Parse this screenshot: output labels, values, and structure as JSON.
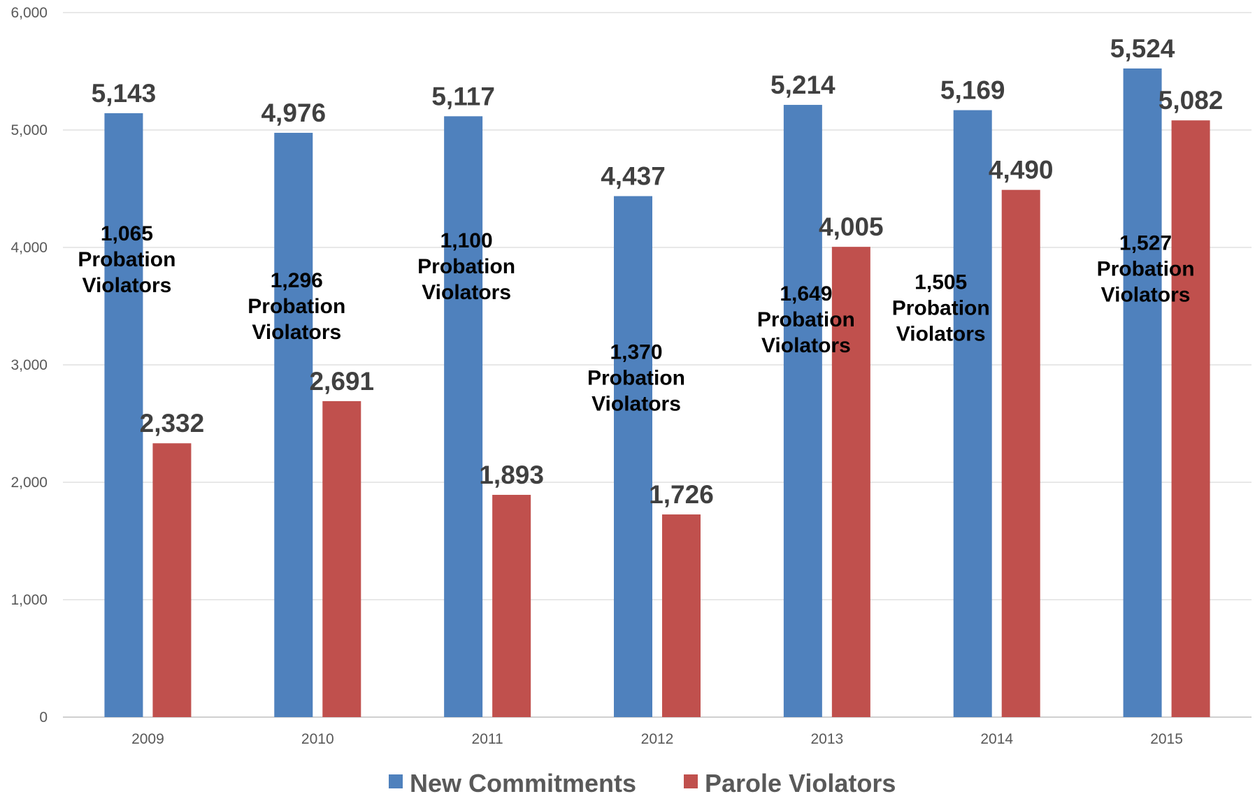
{
  "chart_data": {
    "type": "bar",
    "categories": [
      "2009",
      "2010",
      "2011",
      "2012",
      "2013",
      "2014",
      "2015"
    ],
    "series": [
      {
        "name": "New Commitments",
        "color": "#4f81bd",
        "values": [
          5143,
          4976,
          5117,
          4437,
          5214,
          5169,
          5524
        ],
        "labels": [
          "5,143",
          "4,976",
          "5,117",
          "4,437",
          "5,214",
          "5,169",
          "5,524"
        ]
      },
      {
        "name": "Parole Violators",
        "color": "#c0504d",
        "values": [
          2332,
          2691,
          1893,
          1726,
          4005,
          4490,
          5082
        ],
        "labels": [
          "2,332",
          "2,691",
          "1,893",
          "1,726",
          "4,005",
          "4,490",
          "5,082"
        ]
      }
    ],
    "annotations": [
      {
        "category": "2009",
        "value": 1065,
        "lines": [
          "1,065",
          "Probation",
          "Violators"
        ]
      },
      {
        "category": "2010",
        "value": 1296,
        "lines": [
          "1,296",
          "Probation",
          "Violators"
        ]
      },
      {
        "category": "2011",
        "value": 1100,
        "lines": [
          "1,100",
          "Probation",
          "Violators"
        ]
      },
      {
        "category": "2012",
        "value": 1370,
        "lines": [
          "1,370",
          "Probation",
          "Violators"
        ]
      },
      {
        "category": "2013",
        "value": 1649,
        "lines": [
          "1,649",
          "Probation",
          "Violators"
        ]
      },
      {
        "category": "2014",
        "value": 1505,
        "lines": [
          "1,505",
          "Probation",
          "Violators"
        ]
      },
      {
        "category": "2015",
        "value": 1527,
        "lines": [
          "1,527",
          "Probation",
          "Violators"
        ]
      }
    ],
    "y_ticks": [
      "0",
      "1,000",
      "2,000",
      "3,000",
      "4,000",
      "5,000",
      "6,000"
    ],
    "ylim": [
      0,
      6000
    ],
    "grid": true,
    "legend_position": "bottom",
    "title": "",
    "xlabel": "",
    "ylabel": ""
  }
}
